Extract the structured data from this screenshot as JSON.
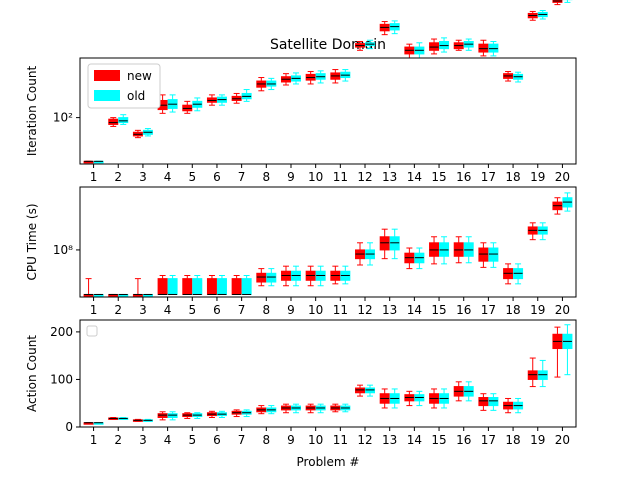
{
  "chart_data": {
    "type": "boxplot",
    "title": "Satellite Domain",
    "xlabel": "Problem #",
    "categories": [
      "1",
      "2",
      "3",
      "4",
      "5",
      "6",
      "7",
      "8",
      "9",
      "10",
      "11",
      "12",
      "13",
      "14",
      "15",
      "16",
      "17",
      "18",
      "19",
      "20"
    ],
    "series_colors": {
      "new": "#ff0000",
      "old": "#00ffff"
    },
    "legend": {
      "placement": "top-left",
      "entries": [
        {
          "name": "new",
          "color": "#ff0000"
        },
        {
          "name": "old",
          "color": "#00ffff"
        }
      ]
    },
    "panels": [
      {
        "ylabel": "Iteration Count",
        "scale": "log",
        "ylim": [
          22,
          700
        ],
        "ytick_values": [
          100
        ],
        "ytick_labels": [
          "10²"
        ],
        "series": [
          {
            "name": "new",
            "boxes": [
              [
                24,
                24,
                24,
                24,
                24
              ],
              [
                75,
                80,
                85,
                95,
                100
              ],
              [
                52,
                55,
                58,
                62,
                66
              ],
              [
                115,
                130,
                150,
                175,
                210
              ],
              [
                115,
                125,
                135,
                150,
                170
              ],
              [
                150,
                165,
                175,
                190,
                210
              ],
              [
                160,
                175,
                185,
                200,
                220
              ],
              [
                240,
                270,
                300,
                330,
                370
              ],
              [
                290,
                320,
                350,
                380,
                420
              ],
              [
                300,
                340,
                370,
                410,
                450
              ],
              [
                310,
                350,
                390,
                430,
                480
              ],
              [
                900,
                1000,
                1050,
                1120,
                1200
              ],
              [
                1500,
                1700,
                1900,
                2100,
                2300
              ],
              [
                700,
                800,
                900,
                1000,
                1100
              ],
              [
                800,
                900,
                1000,
                1150,
                1300
              ],
              [
                900,
                950,
                1050,
                1150,
                1250
              ],
              [
                750,
                850,
                950,
                1100,
                1250
              ],
              [
                330,
                360,
                390,
                420,
                450
              ],
              [
                2400,
                2600,
                2800,
                3000,
                3200
              ],
              [
                4000,
                4300,
                4500,
                4700,
                5000
              ]
            ]
          },
          {
            "name": "old",
            "boxes": [
              [
                24,
                24,
                24,
                24,
                24
              ],
              [
                80,
                85,
                90,
                100,
                110
              ],
              [
                55,
                58,
                62,
                66,
                70
              ],
              [
                120,
                135,
                155,
                180,
                210
              ],
              [
                125,
                140,
                155,
                170,
                190
              ],
              [
                150,
                165,
                180,
                195,
                210
              ],
              [
                170,
                185,
                200,
                220,
                250
              ],
              [
                250,
                280,
                300,
                330,
                360
              ],
              [
                300,
                330,
                360,
                390,
                430
              ],
              [
                310,
                350,
                380,
                420,
                460
              ],
              [
                330,
                370,
                400,
                440,
                480
              ],
              [
                950,
                1050,
                1100,
                1150,
                1250
              ],
              [
                1550,
                1750,
                1950,
                2150,
                2350
              ],
              [
                700,
                800,
                900,
                1000,
                1150
              ],
              [
                850,
                950,
                1050,
                1200,
                1350
              ],
              [
                900,
                1000,
                1100,
                1200,
                1300
              ],
              [
                750,
                850,
                950,
                1100,
                1200
              ],
              [
                320,
                350,
                380,
                410,
                440
              ],
              [
                2500,
                2700,
                2900,
                3100,
                3300
              ],
              [
                4300,
                4700,
                5000,
                5300,
                5600
              ]
            ]
          }
        ]
      },
      {
        "ylabel": "CPU Time (s)",
        "scale": "log",
        "ylim": [
          30000000,
          500000000
        ],
        "ytick_values": [
          100000000
        ],
        "ytick_labels": [
          "10⁸"
        ],
        "series": [
          {
            "name": "new",
            "boxes": [
              [
                32000000,
                32000000,
                32000000,
                32000000,
                48000000
              ],
              [
                32000000,
                32000000,
                32000000,
                32000000,
                32000000
              ],
              [
                32000000,
                32000000,
                32000000,
                32000000,
                48000000
              ],
              [
                32000000,
                32000000,
                32000000,
                48000000,
                52000000
              ],
              [
                32000000,
                32000000,
                32000000,
                48000000,
                52000000
              ],
              [
                32000000,
                32000000,
                32000000,
                48000000,
                52000000
              ],
              [
                32000000,
                32000000,
                32000000,
                48000000,
                52000000
              ],
              [
                40000000,
                44000000,
                50000000,
                55000000,
                62000000
              ],
              [
                40000000,
                46000000,
                52000000,
                58000000,
                66000000
              ],
              [
                40000000,
                46000000,
                52000000,
                58000000,
                66000000
              ],
              [
                42000000,
                46000000,
                52000000,
                58000000,
                66000000
              ],
              [
                68000000,
                80000000,
                90000000,
                100000000,
                120000000
              ],
              [
                80000000,
                100000000,
                120000000,
                140000000,
                170000000
              ],
              [
                62000000,
                72000000,
                82000000,
                92000000,
                105000000
              ],
              [
                70000000,
                85000000,
                100000000,
                120000000,
                140000000
              ],
              [
                72000000,
                85000000,
                100000000,
                120000000,
                140000000
              ],
              [
                64000000,
                75000000,
                90000000,
                105000000,
                120000000
              ],
              [
                42000000,
                48000000,
                55000000,
                62000000,
                70000000
              ],
              [
                130000000,
                150000000,
                165000000,
                180000000,
                200000000
              ],
              [
                250000000,
                280000000,
                310000000,
                340000000,
                380000000
              ]
            ]
          },
          {
            "name": "old",
            "boxes": [
              [
                32000000,
                32000000,
                32000000,
                32000000,
                32000000
              ],
              [
                32000000,
                32000000,
                32000000,
                32000000,
                32000000
              ],
              [
                32000000,
                32000000,
                32000000,
                32000000,
                32000000
              ],
              [
                32000000,
                32000000,
                32000000,
                48000000,
                52000000
              ],
              [
                32000000,
                32000000,
                32000000,
                48000000,
                52000000
              ],
              [
                32000000,
                32000000,
                32000000,
                48000000,
                52000000
              ],
              [
                32000000,
                32000000,
                32000000,
                48000000,
                52000000
              ],
              [
                40000000,
                44000000,
                50000000,
                55000000,
                62000000
              ],
              [
                40000000,
                46000000,
                52000000,
                58000000,
                66000000
              ],
              [
                40000000,
                46000000,
                52000000,
                58000000,
                66000000
              ],
              [
                42000000,
                46000000,
                52000000,
                58000000,
                66000000
              ],
              [
                68000000,
                80000000,
                90000000,
                100000000,
                120000000
              ],
              [
                80000000,
                100000000,
                120000000,
                140000000,
                170000000
              ],
              [
                62000000,
                72000000,
                82000000,
                92000000,
                105000000
              ],
              [
                70000000,
                85000000,
                100000000,
                120000000,
                140000000
              ],
              [
                72000000,
                85000000,
                100000000,
                120000000,
                140000000
              ],
              [
                64000000,
                75000000,
                90000000,
                105000000,
                120000000
              ],
              [
                42000000,
                48000000,
                55000000,
                62000000,
                70000000
              ],
              [
                130000000,
                150000000,
                165000000,
                180000000,
                200000000
              ],
              [
                270000000,
                300000000,
                340000000,
                380000000,
                430000000
              ]
            ]
          }
        ]
      },
      {
        "ylabel": "Action Count",
        "scale": "linear",
        "ylim": [
          0,
          225
        ],
        "ytick_values": [
          0,
          100,
          200
        ],
        "ytick_labels": [
          "0",
          "100",
          "200"
        ],
        "series": [
          {
            "name": "new",
            "boxes": [
              [
                9,
                9,
                9,
                9,
                9
              ],
              [
                16,
                17,
                18,
                19,
                20
              ],
              [
                12,
                13,
                14,
                15,
                16
              ],
              [
                15,
                20,
                25,
                28,
                32
              ],
              [
                18,
                22,
                25,
                28,
                30
              ],
              [
                20,
                24,
                27,
                30,
                33
              ],
              [
                22,
                27,
                30,
                33,
                36
              ],
              [
                28,
                32,
                36,
                40,
                45
              ],
              [
                30,
                36,
                40,
                44,
                48
              ],
              [
                30,
                36,
                40,
                44,
                48
              ],
              [
                32,
                36,
                40,
                44,
                48
              ],
              [
                65,
                72,
                78,
                82,
                88
              ],
              [
                40,
                50,
                60,
                70,
                80
              ],
              [
                45,
                55,
                62,
                68,
                75
              ],
              [
                40,
                50,
                60,
                70,
                80
              ],
              [
                55,
                65,
                75,
                85,
                95
              ],
              [
                35,
                45,
                55,
                62,
                70
              ],
              [
                30,
                38,
                45,
                52,
                60
              ],
              [
                85,
                100,
                110,
                118,
                145
              ],
              [
                105,
                165,
                180,
                195,
                210
              ]
            ]
          },
          {
            "name": "old",
            "boxes": [
              [
                9,
                9,
                9,
                9,
                9
              ],
              [
                16,
                17,
                18,
                19,
                20
              ],
              [
                12,
                13,
                14,
                15,
                16
              ],
              [
                15,
                20,
                25,
                28,
                32
              ],
              [
                18,
                22,
                25,
                28,
                30
              ],
              [
                20,
                24,
                27,
                30,
                33
              ],
              [
                22,
                27,
                30,
                33,
                36
              ],
              [
                28,
                32,
                36,
                40,
                45
              ],
              [
                30,
                36,
                40,
                44,
                48
              ],
              [
                30,
                36,
                40,
                44,
                48
              ],
              [
                32,
                36,
                40,
                44,
                48
              ],
              [
                65,
                72,
                78,
                82,
                88
              ],
              [
                40,
                50,
                60,
                70,
                80
              ],
              [
                45,
                55,
                62,
                68,
                75
              ],
              [
                40,
                50,
                60,
                70,
                80
              ],
              [
                55,
                65,
                75,
                85,
                95
              ],
              [
                35,
                45,
                55,
                62,
                70
              ],
              [
                30,
                38,
                45,
                52,
                60
              ],
              [
                85,
                100,
                110,
                118,
                140
              ],
              [
                110,
                165,
                180,
                195,
                215
              ]
            ]
          }
        ]
      }
    ]
  }
}
